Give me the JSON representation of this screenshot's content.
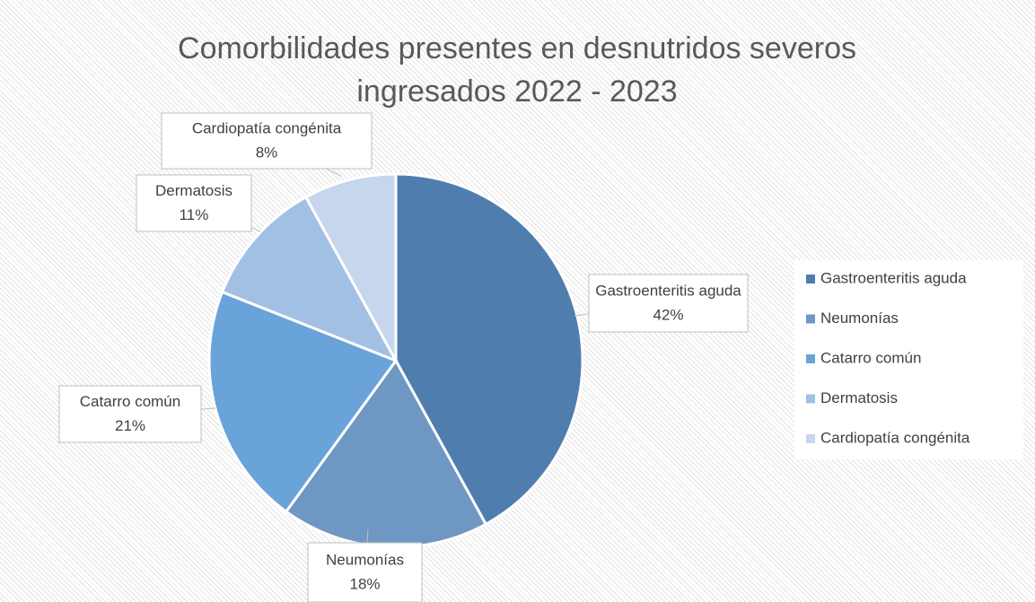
{
  "chart_data": {
    "type": "pie",
    "title": "Comorbilidades presentes en desnutridos severos ingresados 2022 - 2023",
    "categories": [
      "Gastroenteritis aguda",
      "Neumonías",
      "Catarro común",
      "Dermatosis",
      "Cardiopatía congénita"
    ],
    "values": [
      42,
      18,
      21,
      11,
      8
    ],
    "value_labels": [
      "42%",
      "18%",
      "21%",
      "11%",
      "8%"
    ],
    "colors": [
      "#4f7eae",
      "#6f97c4",
      "#6aa3d9",
      "#a2c0e4",
      "#c6d6ec"
    ],
    "legend": "right"
  }
}
